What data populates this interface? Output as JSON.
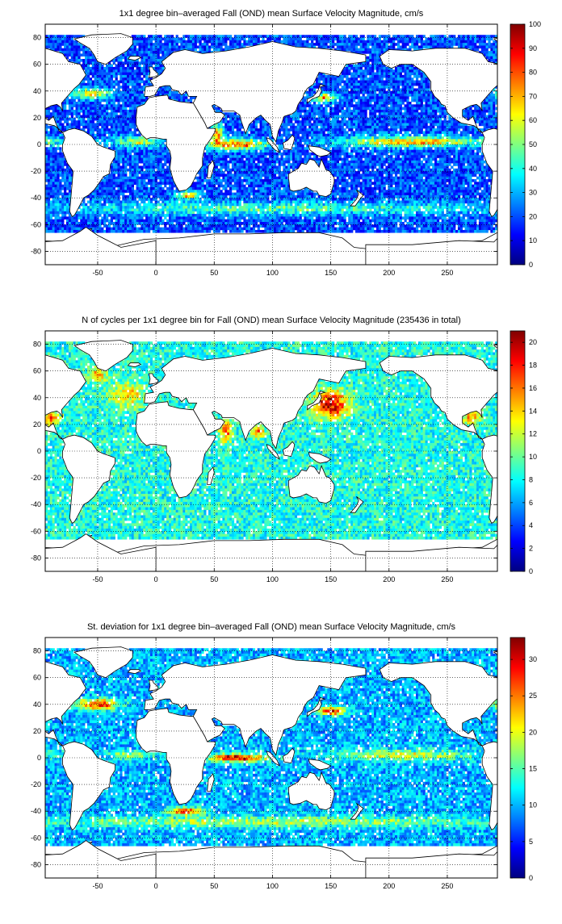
{
  "chart_data": [
    {
      "type": "heatmap",
      "title": "1x1 degree bin–averaged Fall (OND) mean Surface Velocity Magnitude, cm/s",
      "xlabel": "",
      "ylabel": "",
      "xlim": [
        -95,
        293
      ],
      "ylim": [
        -90,
        90
      ],
      "x_ticks": [
        -50,
        0,
        50,
        100,
        150,
        200,
        250
      ],
      "y_ticks": [
        -80,
        -60,
        -40,
        -20,
        0,
        20,
        40,
        60,
        80
      ],
      "grid": true,
      "colormap": "jet",
      "clim": [
        0,
        100
      ],
      "colorbar_ticks": [
        0,
        10,
        20,
        30,
        40,
        50,
        60,
        70,
        80,
        90,
        100
      ],
      "background_level": 0.2,
      "ocean_coverage_max_lat": 82,
      "hotspots": [
        {
          "name": "Gulf Stream",
          "lon": -55,
          "lat": 38,
          "rlon": 16,
          "rlat": 4,
          "level": 0.65
        },
        {
          "name": "Kuroshio",
          "lon": 145,
          "lat": 35,
          "rlon": 12,
          "rlat": 3,
          "level": 0.7
        },
        {
          "name": "Pacific equatorial",
          "lon": 220,
          "lat": 2,
          "rlon": 60,
          "rlat": 4,
          "level": 0.7
        },
        {
          "name": "Atlantic equatorial",
          "lon": -15,
          "lat": 2,
          "rlon": 20,
          "rlat": 4,
          "level": 0.55
        },
        {
          "name": "Indian equatorial",
          "lon": 70,
          "lat": 0,
          "rlon": 25,
          "rlat": 4,
          "level": 0.8
        },
        {
          "name": "Somali Current",
          "lon": 52,
          "lat": 8,
          "rlon": 5,
          "rlat": 7,
          "level": 0.75
        },
        {
          "name": "Agulhas",
          "lon": 28,
          "lat": -38,
          "rlon": 10,
          "rlat": 3,
          "level": 0.7
        },
        {
          "name": "Antarctic Circumpolar",
          "lon": 100,
          "lat": -48,
          "rlon": 200,
          "rlat": 5,
          "level": 0.45
        }
      ]
    },
    {
      "type": "heatmap",
      "title": "N of cycles per 1x1 degree bin for Fall (OND) mean Surface Velocity Magnitude (235436 in total)",
      "xlabel": "",
      "ylabel": "",
      "xlim": [
        -95,
        293
      ],
      "ylim": [
        -90,
        90
      ],
      "x_ticks": [
        -50,
        0,
        50,
        100,
        150,
        200,
        250
      ],
      "y_ticks": [
        -80,
        -60,
        -40,
        -20,
        0,
        20,
        40,
        60,
        80
      ],
      "grid": true,
      "colormap": "jet",
      "clim": [
        0,
        21
      ],
      "colorbar_ticks": [
        0,
        2,
        4,
        6,
        8,
        10,
        12,
        14,
        16,
        18,
        20
      ],
      "background_level": 0.4,
      "ocean_coverage_max_lat": 82,
      "hotspots": [
        {
          "name": "NW Pacific",
          "lon": 150,
          "lat": 35,
          "rlon": 15,
          "rlat": 10,
          "level": 0.95
        },
        {
          "name": "Arabian Sea",
          "lon": 60,
          "lat": 15,
          "rlon": 5,
          "rlat": 8,
          "level": 0.85
        },
        {
          "name": "Bay of Bengal",
          "lon": 88,
          "lat": 15,
          "rlon": 5,
          "rlat": 5,
          "level": 0.8
        },
        {
          "name": "Gulf of Mexico",
          "lon": -90,
          "lat": 25,
          "rlon": 8,
          "rlat": 5,
          "level": 0.75
        },
        {
          "name": "Labrador Sea",
          "lon": -50,
          "lat": 57,
          "rlon": 8,
          "rlat": 5,
          "level": 0.7
        },
        {
          "name": "North Atlantic",
          "lon": -25,
          "lat": 42,
          "rlon": 15,
          "rlat": 10,
          "level": 0.65
        }
      ]
    },
    {
      "type": "heatmap",
      "title": "St. deviation for 1x1 degree bin–averaged Fall (OND) mean Surface Velocity Magnitude, cm/s",
      "xlabel": "",
      "ylabel": "",
      "xlim": [
        -95,
        293
      ],
      "ylim": [
        -90,
        90
      ],
      "x_ticks": [
        -50,
        0,
        50,
        100,
        150,
        200,
        250
      ],
      "y_ticks": [
        -80,
        -60,
        -40,
        -20,
        0,
        20,
        40,
        60,
        80
      ],
      "grid": true,
      "colormap": "jet",
      "clim": [
        0,
        33
      ],
      "colorbar_ticks": [
        0,
        5,
        10,
        15,
        20,
        25,
        30
      ],
      "background_level": 0.3,
      "ocean_coverage_max_lat": 82,
      "hotspots": [
        {
          "name": "Gulf Stream",
          "lon": -50,
          "lat": 40,
          "rlon": 18,
          "rlat": 4,
          "level": 0.85
        },
        {
          "name": "Kuroshio",
          "lon": 150,
          "lat": 35,
          "rlon": 12,
          "rlat": 3,
          "level": 0.9
        },
        {
          "name": "Indian equatorial",
          "lon": 70,
          "lat": 0,
          "rlon": 25,
          "rlat": 3,
          "level": 0.9
        },
        {
          "name": "Pacific equatorial",
          "lon": 210,
          "lat": 2,
          "rlon": 60,
          "rlat": 4,
          "level": 0.6
        },
        {
          "name": "Atlantic equatorial",
          "lon": -20,
          "lat": 2,
          "rlon": 20,
          "rlat": 3,
          "level": 0.55
        },
        {
          "name": "Agulhas",
          "lon": 25,
          "lat": -40,
          "rlon": 15,
          "rlat": 3,
          "level": 0.8
        },
        {
          "name": "Antarctic Circumpolar",
          "lon": 100,
          "lat": -48,
          "rlon": 200,
          "rlat": 4,
          "level": 0.55
        }
      ]
    }
  ]
}
